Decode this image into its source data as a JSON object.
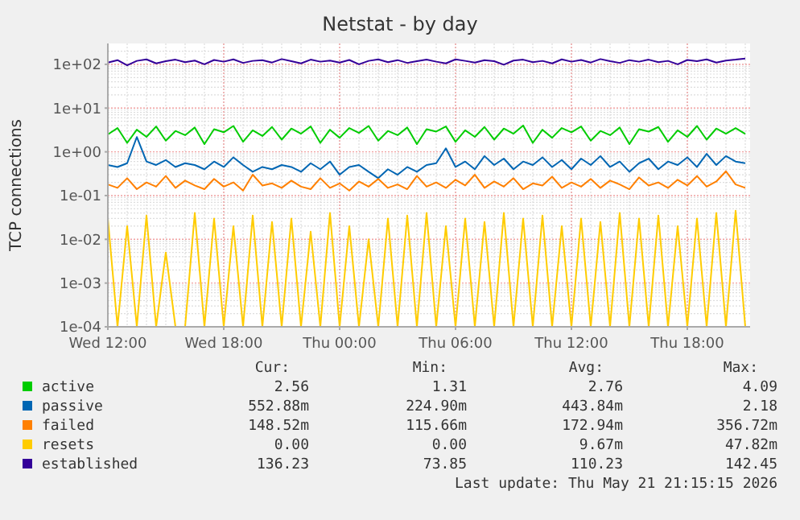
{
  "chart_data": {
    "type": "line",
    "title": "Netstat - by day",
    "ylabel": "TCP connections",
    "x": [
      "2026-05-20T12:00",
      "2026-05-20T12:30",
      "2026-05-20T13:00",
      "2026-05-20T13:30",
      "2026-05-20T14:00",
      "2026-05-20T14:30",
      "2026-05-20T15:00",
      "2026-05-20T15:30",
      "2026-05-20T16:00",
      "2026-05-20T16:30",
      "2026-05-20T17:00",
      "2026-05-20T17:30",
      "2026-05-20T18:00",
      "2026-05-20T18:30",
      "2026-05-20T19:00",
      "2026-05-20T19:30",
      "2026-05-20T20:00",
      "2026-05-20T20:30",
      "2026-05-20T21:00",
      "2026-05-20T21:30",
      "2026-05-20T22:00",
      "2026-05-20T22:30",
      "2026-05-20T23:00",
      "2026-05-20T23:30",
      "2026-05-21T00:00",
      "2026-05-21T00:30",
      "2026-05-21T01:00",
      "2026-05-21T01:30",
      "2026-05-21T02:00",
      "2026-05-21T02:30",
      "2026-05-21T03:00",
      "2026-05-21T03:30",
      "2026-05-21T04:00",
      "2026-05-21T04:30",
      "2026-05-21T05:00",
      "2026-05-21T05:30",
      "2026-05-21T06:00",
      "2026-05-21T06:30",
      "2026-05-21T07:00",
      "2026-05-21T07:30",
      "2026-05-21T08:00",
      "2026-05-21T08:30",
      "2026-05-21T09:00",
      "2026-05-21T09:30",
      "2026-05-21T10:00",
      "2026-05-21T10:30",
      "2026-05-21T11:00",
      "2026-05-21T11:30",
      "2026-05-21T12:00",
      "2026-05-21T12:30",
      "2026-05-21T13:00",
      "2026-05-21T13:30",
      "2026-05-21T14:00",
      "2026-05-21T14:30",
      "2026-05-21T15:00",
      "2026-05-21T15:30",
      "2026-05-21T16:00",
      "2026-05-21T16:30",
      "2026-05-21T17:00",
      "2026-05-21T17:30",
      "2026-05-21T18:00",
      "2026-05-21T18:30",
      "2026-05-21T19:00",
      "2026-05-21T19:30",
      "2026-05-21T20:00",
      "2026-05-21T20:30",
      "2026-05-21T21:00"
    ],
    "xlim": [
      "2026-05-20T12:00",
      "2026-05-21T21:15"
    ],
    "xticks": [
      {
        "value": "2026-05-20T12:00",
        "label": "Wed 12:00"
      },
      {
        "value": "2026-05-20T18:00",
        "label": "Wed 18:00"
      },
      {
        "value": "2026-05-21T00:00",
        "label": "Thu 00:00"
      },
      {
        "value": "2026-05-21T06:00",
        "label": "Thu 06:00"
      },
      {
        "value": "2026-05-21T12:00",
        "label": "Thu 12:00"
      },
      {
        "value": "2026-05-21T18:00",
        "label": "Thu 18:00"
      }
    ],
    "ylim": [
      0.0001,
      300
    ],
    "log": "y",
    "yticks": [
      {
        "value": 0.0001,
        "label": "1e-04"
      },
      {
        "value": 0.001,
        "label": "1e-03"
      },
      {
        "value": 0.01,
        "label": "1e-02"
      },
      {
        "value": 0.1,
        "label": "1e-01"
      },
      {
        "value": 1,
        "label": "1e+00"
      },
      {
        "value": 10,
        "label": "1e+01"
      },
      {
        "value": 100,
        "label": "1e+02"
      }
    ],
    "grid": true,
    "legend": "bottom",
    "series": [
      {
        "name": "active",
        "color": "#00cc00",
        "values": [
          2.5,
          3.5,
          1.6,
          3.2,
          2.2,
          3.8,
          1.8,
          3.0,
          2.4,
          3.6,
          1.5,
          3.3,
          2.8,
          3.9,
          1.7,
          3.1,
          2.3,
          3.7,
          1.9,
          3.4,
          2.6,
          3.8,
          1.6,
          3.2,
          2.1,
          3.5,
          2.7,
          3.9,
          1.8,
          3.0,
          2.4,
          3.6,
          1.5,
          3.3,
          2.9,
          3.8,
          1.7,
          3.1,
          2.2,
          3.7,
          1.9,
          3.4,
          2.6,
          4.0,
          1.6,
          3.2,
          2.1,
          3.5,
          2.8,
          3.8,
          1.8,
          3.0,
          2.4,
          3.6,
          1.5,
          3.3,
          2.9,
          3.7,
          1.7,
          3.1,
          2.2,
          3.9,
          1.9,
          3.4,
          2.6,
          3.5,
          2.56
        ]
      },
      {
        "name": "passive",
        "color": "#0066b3",
        "values": [
          0.5,
          0.45,
          0.55,
          2.18,
          0.6,
          0.5,
          0.65,
          0.45,
          0.55,
          0.5,
          0.4,
          0.6,
          0.45,
          0.75,
          0.5,
          0.35,
          0.45,
          0.4,
          0.5,
          0.45,
          0.35,
          0.55,
          0.4,
          0.6,
          0.3,
          0.45,
          0.5,
          0.35,
          0.25,
          0.4,
          0.3,
          0.45,
          0.35,
          0.5,
          0.55,
          1.2,
          0.45,
          0.6,
          0.4,
          0.8,
          0.5,
          0.7,
          0.4,
          0.6,
          0.5,
          0.75,
          0.45,
          0.65,
          0.4,
          0.7,
          0.5,
          0.8,
          0.45,
          0.6,
          0.35,
          0.55,
          0.7,
          0.4,
          0.6,
          0.5,
          0.75,
          0.45,
          0.9,
          0.5,
          0.8,
          0.6,
          0.55
        ]
      },
      {
        "name": "failed",
        "color": "#ff8000",
        "values": [
          0.18,
          0.15,
          0.25,
          0.14,
          0.2,
          0.16,
          0.28,
          0.15,
          0.22,
          0.17,
          0.14,
          0.24,
          0.16,
          0.2,
          0.13,
          0.3,
          0.17,
          0.19,
          0.15,
          0.22,
          0.16,
          0.14,
          0.25,
          0.15,
          0.19,
          0.13,
          0.21,
          0.16,
          0.24,
          0.15,
          0.18,
          0.14,
          0.28,
          0.16,
          0.2,
          0.15,
          0.23,
          0.17,
          0.3,
          0.15,
          0.21,
          0.16,
          0.25,
          0.14,
          0.19,
          0.17,
          0.27,
          0.15,
          0.2,
          0.16,
          0.24,
          0.15,
          0.22,
          0.18,
          0.14,
          0.26,
          0.17,
          0.2,
          0.15,
          0.23,
          0.17,
          0.28,
          0.16,
          0.21,
          0.36,
          0.18,
          0.15
        ]
      },
      {
        "name": "resets",
        "color": "#ffcc00",
        "values": [
          0.03,
          0.0001,
          0.02,
          0.0001,
          0.035,
          0.0001,
          0.005,
          0.0001,
          0.0001,
          0.04,
          0.0001,
          0.03,
          0.0001,
          0.02,
          0.0001,
          0.035,
          0.0001,
          0.025,
          0.0001,
          0.03,
          0.0001,
          0.015,
          0.0001,
          0.04,
          0.0001,
          0.02,
          0.0001,
          0.01,
          0.0001,
          0.03,
          0.0001,
          0.035,
          0.0001,
          0.04,
          0.0001,
          0.02,
          0.0001,
          0.03,
          0.0001,
          0.025,
          0.0001,
          0.04,
          0.0001,
          0.03,
          0.0001,
          0.035,
          0.0001,
          0.02,
          0.0001,
          0.03,
          0.0001,
          0.025,
          0.0001,
          0.04,
          0.0001,
          0.03,
          0.0001,
          0.035,
          0.0001,
          0.02,
          0.0001,
          0.03,
          0.0001,
          0.04,
          0.0001,
          0.045,
          0.0001
        ]
      },
      {
        "name": "established",
        "color": "#330099",
        "values": [
          110,
          125,
          95,
          120,
          130,
          105,
          118,
          128,
          112,
          122,
          100,
          126,
          115,
          130,
          108,
          120,
          125,
          110,
          132,
          118,
          105,
          128,
          115,
          122,
          110,
          126,
          100,
          120,
          130,
          112,
          125,
          108,
          118,
          128,
          115,
          105,
          130,
          120,
          110,
          125,
          118,
          98,
          122,
          128,
          112,
          120,
          105,
          130,
          115,
          126,
          110,
          132,
          118,
          108,
          125,
          115,
          128,
          112,
          120,
          100,
          126,
          118,
          130,
          110,
          122,
          128,
          136
        ]
      }
    ],
    "annotations": [
      "Cur:",
      "Min:",
      "Avg:",
      "Max:",
      "2.56",
      "1.31",
      "2.76",
      "4.09",
      "552.88m",
      "224.90m",
      "443.84m",
      "2.18",
      "148.52m",
      "115.66m",
      "172.94m",
      "356.72m",
      "0.00",
      "0.00",
      "9.67m",
      "47.82m",
      "136.23",
      "73.85",
      "110.23",
      "142.45",
      "Last update: Thu May 21 21:15:15 2026"
    ]
  }
}
